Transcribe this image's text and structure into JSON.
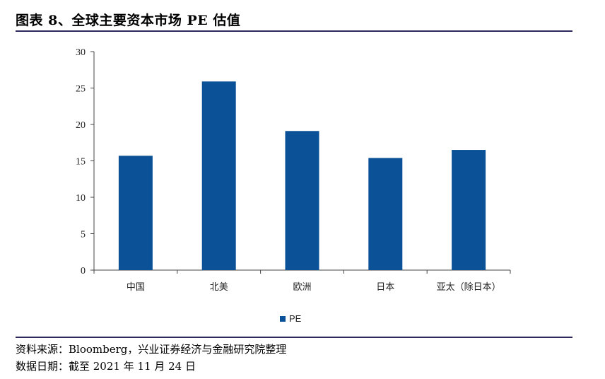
{
  "figure": {
    "title": "图表 8、全球主要资本市场 PE 估值",
    "source": "资料来源：Bloomberg，兴业证券经济与金融研究院整理",
    "date_note": "数据日期：截至 2021 年 11 月 24 日"
  },
  "colors": {
    "bar": "#0b5197",
    "rule": "#2e2a5c",
    "axis": "#444444"
  },
  "chart_data": {
    "type": "bar",
    "categories": [
      "中国",
      "北美",
      "欧洲",
      "日本",
      "亚太（除日本）"
    ],
    "series": [
      {
        "name": "PE",
        "values": [
          15.7,
          25.9,
          19.1,
          15.4,
          16.5
        ]
      }
    ],
    "y_ticks": [
      "0",
      "5",
      "10",
      "15",
      "20",
      "25",
      "30"
    ],
    "ylim": [
      0,
      30
    ],
    "grid": false,
    "legend_position": "bottom"
  }
}
